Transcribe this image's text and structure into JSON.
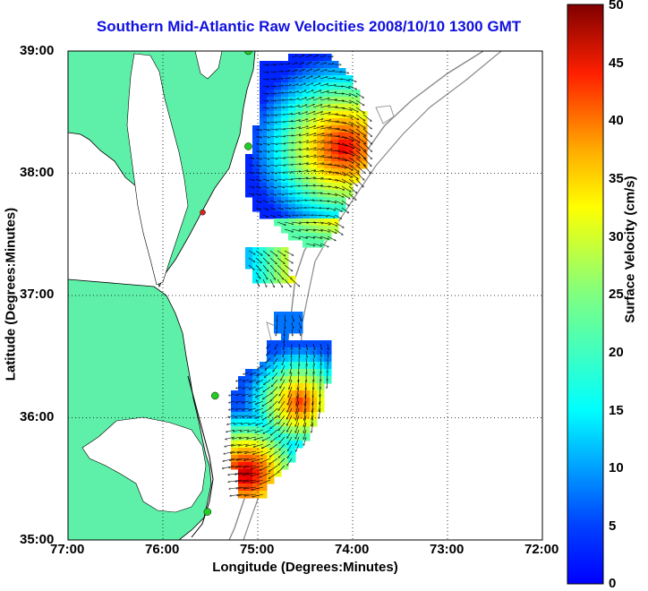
{
  "title": "Southern Mid-Atlantic Raw Velocities 2008/10/10 1300 GMT",
  "axes": {
    "xlabel": "Longitude (Degrees:Minutes)",
    "ylabel": "Latitude (Degrees:Minutes)",
    "x_ticks": [
      "77:00",
      "76:00",
      "75:00",
      "74:00",
      "73:00",
      "72:00"
    ],
    "y_ticks": [
      "39:00",
      "38:00",
      "37:00",
      "36:00",
      "35:00"
    ],
    "x_range": [
      -77,
      -72
    ],
    "y_range": [
      35,
      39
    ],
    "grid": "dotted"
  },
  "colorbar": {
    "label": "Surface Velocity (cm/s)",
    "ticks": [
      "50",
      "45",
      "40",
      "35",
      "30",
      "25",
      "20",
      "15",
      "10",
      "5",
      "0"
    ],
    "range": [
      0,
      50
    ],
    "colormap": "jet"
  },
  "colors": {
    "land": "#5ef0a8",
    "title": "#1010e0",
    "station_marker": "#22cc22",
    "highlight_marker": "#dd2222"
  },
  "stations": [
    {
      "lon": -75.1,
      "lat": 39.0
    },
    {
      "lon": -75.1,
      "lat": 38.22
    },
    {
      "lon": -75.58,
      "lat": 37.68
    },
    {
      "lon": -75.45,
      "lat": 36.18
    },
    {
      "lon": -75.53,
      "lat": 35.23
    }
  ]
}
